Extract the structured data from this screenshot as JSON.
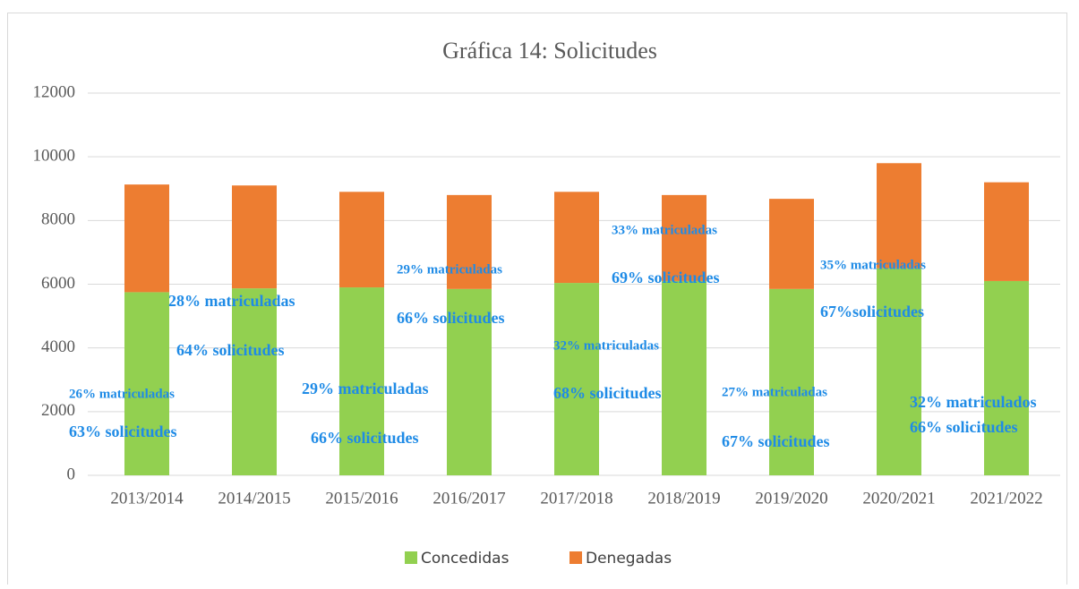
{
  "chart_data": {
    "type": "stacked_bar",
    "title": "Gráfica 14: Solicitudes",
    "categories": [
      "2013/2014",
      "2014/2015",
      "2015/2016",
      "2016/2017",
      "2017/2018",
      "2018/2019",
      "2019/2020",
      "2020/2021",
      "2021/2022"
    ],
    "series": [
      {
        "name": "Concedidas",
        "color": "#92d050",
        "values": [
          5750,
          5870,
          5900,
          5850,
          6040,
          6100,
          5850,
          6500,
          6100
        ]
      },
      {
        "name": "Denegadas",
        "color": "#ed7d31",
        "values": [
          3380,
          3230,
          3000,
          2950,
          2860,
          2700,
          2830,
          3300,
          3100
        ]
      }
    ],
    "ylim": [
      0,
      12000
    ],
    "yticks": [
      0,
      2000,
      4000,
      6000,
      8000,
      10000,
      12000
    ],
    "grid": true,
    "legend": "bottom",
    "annotations": [
      "26% matriculadas",
      "63% solicitudes",
      "28% matriculadas",
      "64% solicitudes",
      "29% matriculadas",
      "66% solicitudes",
      "29% matriculadas",
      "66% solicitudes",
      "32% matriculadas",
      "68% solicitudes",
      "33% matriculadas",
      "69% solicitudes",
      "27% matriculadas",
      "67% solicitudes",
      "35% matriculadas",
      "67%solicitudes",
      "32% matriculados",
      "66% solicitudes"
    ]
  }
}
